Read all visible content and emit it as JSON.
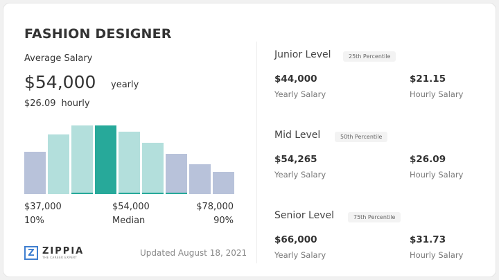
{
  "title": "FASHION DESIGNER",
  "average": {
    "label": "Average Salary",
    "yearly_value": "$54,000",
    "yearly_unit": "yearly",
    "hourly_value": "$26.09",
    "hourly_unit": "hourly"
  },
  "chart_data": {
    "type": "bar",
    "values": [
      61,
      86,
      99,
      99,
      90,
      74,
      58,
      43,
      32
    ],
    "highlight_index": 3,
    "colors": {
      "outer": "#b8c2da",
      "inner": "#b3dfdc",
      "median": "#27a99a"
    },
    "bar_groups": [
      "outer",
      "inner",
      "inner",
      "median",
      "inner",
      "inner",
      "outer",
      "outer",
      "outer"
    ],
    "tick_labels": [
      {
        "value": "$37,000",
        "pct": "10%"
      },
      {
        "value": "$54,000",
        "pct": "Median"
      },
      {
        "value": "$78,000",
        "pct": "90%"
      }
    ]
  },
  "logo": {
    "name": "ZIPPIA",
    "tagline": "THE CAREER EXPERT",
    "glyph": "Z"
  },
  "updated": "Updated August 18, 2021",
  "levels": [
    {
      "name": "Junior Level",
      "percentile": "25th Percentile",
      "yearly": "$44,000",
      "yearly_label": "Yearly Salary",
      "hourly": "$21.15",
      "hourly_label": "Hourly Salary"
    },
    {
      "name": "Mid Level",
      "percentile": "50th Percentile",
      "yearly": "$54,265",
      "yearly_label": "Yearly Salary",
      "hourly": "$26.09",
      "hourly_label": "Hourly Salary"
    },
    {
      "name": "Senior Level",
      "percentile": "75th Percentile",
      "yearly": "$66,000",
      "yearly_label": "Yearly Salary",
      "hourly": "$31.73",
      "hourly_label": "Hourly Salary"
    }
  ]
}
